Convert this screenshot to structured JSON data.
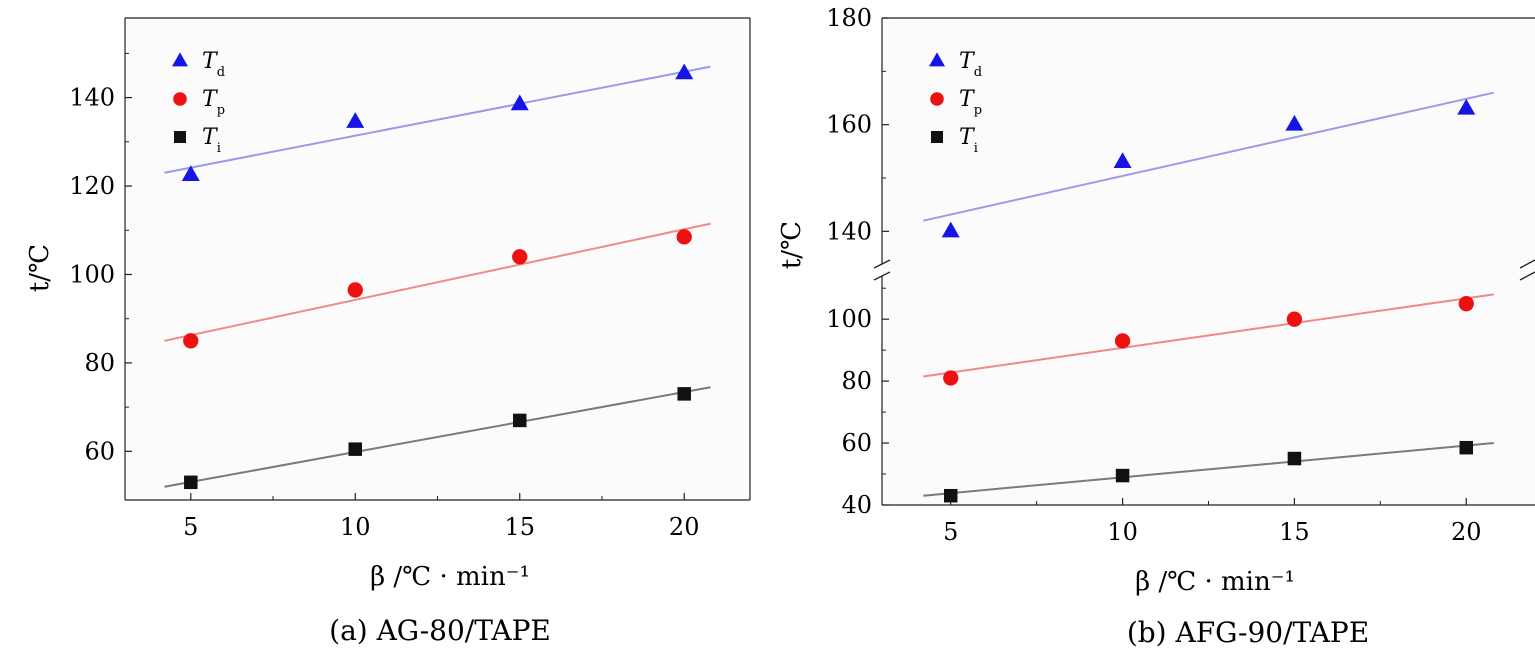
{
  "chart_data": [
    {
      "type": "scatter",
      "caption": "(a)  AG-80/TAPE",
      "xlabel": "β /℃ · min⁻¹",
      "ylabel": "t/℃",
      "xlim": [
        3,
        22
      ],
      "ylim": [
        49,
        158
      ],
      "xticks": [
        5,
        10,
        15,
        20
      ],
      "yticks": [
        60,
        80,
        100,
        120,
        140
      ],
      "axis_break": false,
      "legend_position": "top-left",
      "grid": false,
      "series": [
        {
          "name": "T",
          "sub": "d",
          "marker": "triangle",
          "color": "#1515e6",
          "line_color": "#9a9aea",
          "x": [
            5,
            10,
            15,
            20
          ],
          "y": [
            122.5,
            134.5,
            138.5,
            145.5
          ],
          "fit": [
            [
              4.2,
              123
            ],
            [
              20.8,
              147
            ]
          ]
        },
        {
          "name": "T",
          "sub": "p",
          "marker": "circle",
          "color": "#ee1111",
          "line_color": "#f08a8a",
          "x": [
            5,
            10,
            15,
            20
          ],
          "y": [
            85,
            96.5,
            104,
            108.5
          ],
          "fit": [
            [
              4.2,
              85
            ],
            [
              20.8,
              111.5
            ]
          ]
        },
        {
          "name": "T",
          "sub": "i",
          "marker": "square",
          "color": "#111111",
          "line_color": "#7a7a7a",
          "x": [
            5,
            10,
            15,
            20
          ],
          "y": [
            53,
            60.5,
            67,
            73
          ],
          "fit": [
            [
              4.2,
              52
            ],
            [
              20.8,
              74.5
            ]
          ]
        }
      ]
    },
    {
      "type": "scatter",
      "caption": "(b)  AFG-90/TAPE",
      "xlabel": "β /℃ · min⁻¹",
      "ylabel": "t/℃",
      "xlim": [
        3,
        22
      ],
      "ylim_lower": [
        40,
        112
      ],
      "ylim_upper": [
        135,
        180
      ],
      "xticks": [
        5,
        10,
        15,
        20
      ],
      "yticks_lower": [
        40,
        60,
        80,
        100
      ],
      "yticks_upper": [
        140,
        160,
        180
      ],
      "axis_break": true,
      "legend_position": "top-left",
      "grid": false,
      "series": [
        {
          "name": "T",
          "sub": "d",
          "marker": "triangle",
          "color": "#1515e6",
          "line_color": "#9a9aea",
          "x": [
            5,
            10,
            15,
            20
          ],
          "y": [
            140,
            153,
            160,
            163
          ],
          "fit": [
            [
              4.2,
              142
            ],
            [
              20.8,
              166
            ]
          ]
        },
        {
          "name": "T",
          "sub": "p",
          "marker": "circle",
          "color": "#ee1111",
          "line_color": "#f08a8a",
          "x": [
            5,
            10,
            15,
            20
          ],
          "y": [
            81,
            93,
            100,
            105
          ],
          "fit": [
            [
              4.2,
              81.5
            ],
            [
              20.8,
              108
            ]
          ]
        },
        {
          "name": "T",
          "sub": "i",
          "marker": "square",
          "color": "#111111",
          "line_color": "#7a7a7a",
          "x": [
            5,
            10,
            15,
            20
          ],
          "y": [
            43,
            49.5,
            55,
            58.5
          ],
          "fit": [
            [
              4.2,
              43
            ],
            [
              20.8,
              60
            ]
          ]
        }
      ]
    }
  ]
}
